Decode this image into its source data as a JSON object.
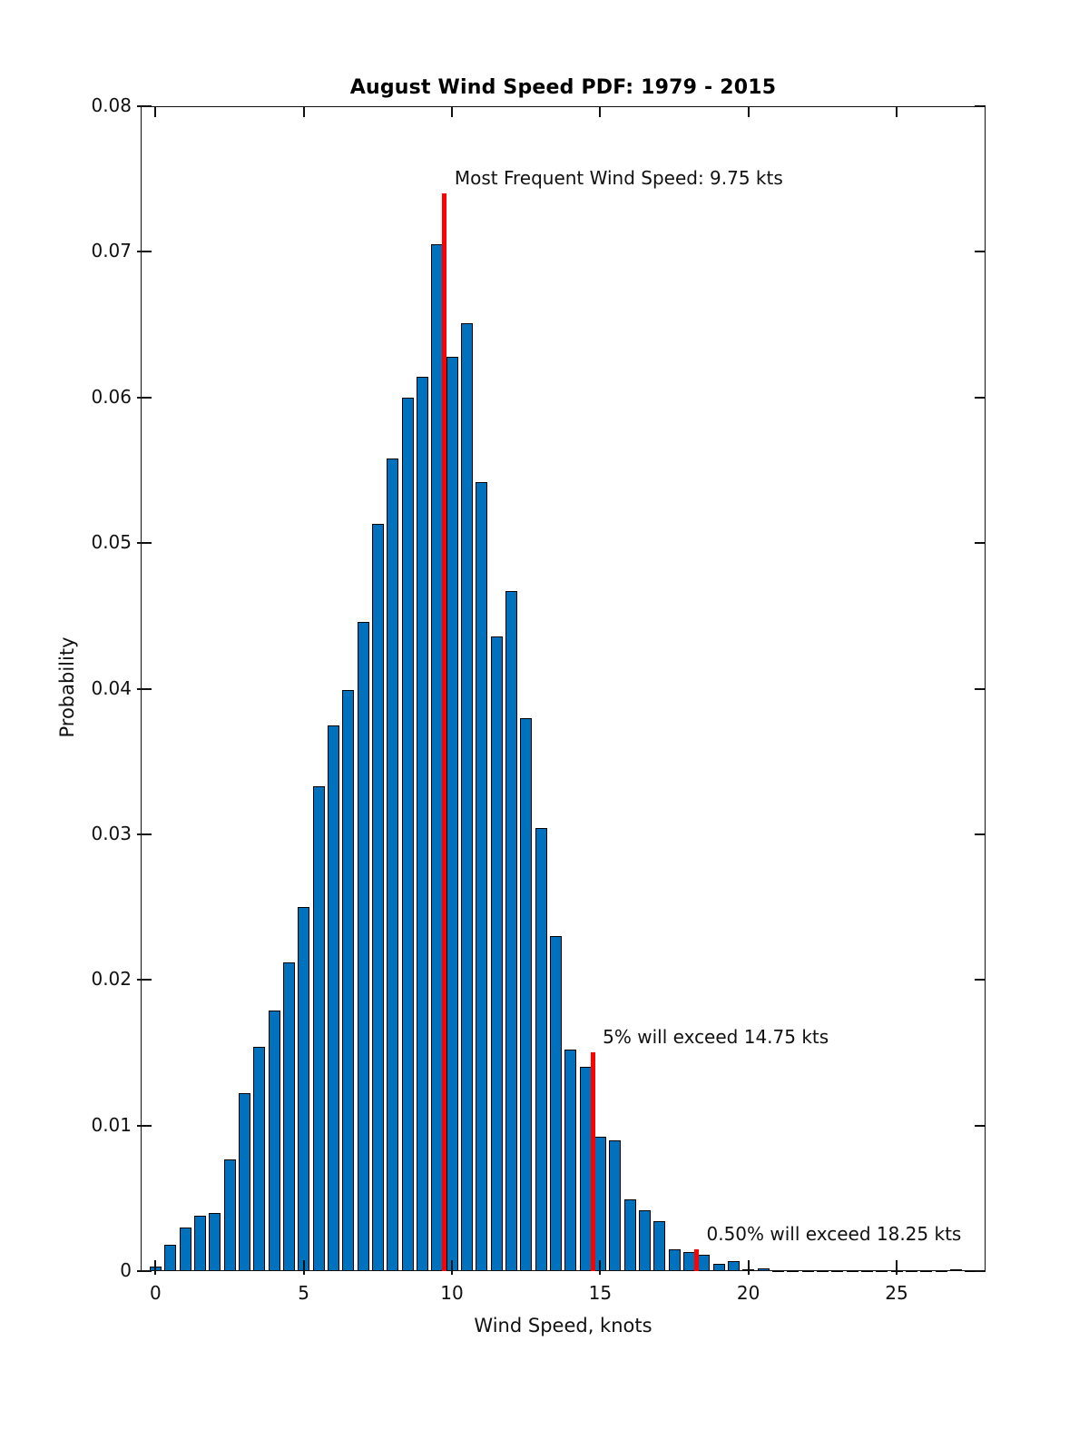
{
  "chart_data": {
    "type": "bar",
    "subtype": "histogram-pdf",
    "title": "August Wind Speed PDF: 1979 - 2015",
    "xlabel": "Wind Speed, knots",
    "ylabel": "Probability",
    "xlim": [
      -0.5,
      28
    ],
    "ylim": [
      0,
      0.08
    ],
    "xticks": [
      0,
      5,
      10,
      15,
      20,
      25
    ],
    "xtick_labels": [
      "0",
      "5",
      "10",
      "15",
      "20",
      "25"
    ],
    "yticks": [
      0,
      0.01,
      0.02,
      0.03,
      0.04,
      0.05,
      0.06,
      0.07,
      0.08
    ],
    "ytick_labels": [
      "0",
      "0.01",
      "0.02",
      "0.03",
      "0.04",
      "0.05",
      "0.06",
      "0.07",
      "0.08"
    ],
    "grid": false,
    "legend": "none",
    "bin_width_kts": 0.5,
    "bin_centers": [
      0,
      0.5,
      1,
      1.5,
      2,
      2.5,
      3,
      3.5,
      4,
      4.5,
      5,
      5.5,
      6,
      6.5,
      7,
      7.5,
      8,
      8.5,
      9,
      9.5,
      10,
      10.5,
      11,
      11.5,
      12,
      12.5,
      13,
      13.5,
      14,
      14.5,
      15,
      15.5,
      16,
      16.5,
      17,
      17.5,
      18,
      18.5,
      19,
      19.5,
      20,
      20.5,
      21,
      21.5,
      22,
      22.5,
      23,
      23.5,
      24,
      24.5,
      25,
      25.5,
      26,
      26.5,
      27,
      27.5
    ],
    "probabilities": [
      0.0003,
      0.0018,
      0.003,
      0.0038,
      0.004,
      0.0077,
      0.0122,
      0.0154,
      0.0179,
      0.0212,
      0.025,
      0.0333,
      0.0375,
      0.0399,
      0.0446,
      0.0513,
      0.0558,
      0.06,
      0.0614,
      0.0705,
      0.0628,
      0.0651,
      0.0542,
      0.0436,
      0.0467,
      0.038,
      0.0304,
      0.023,
      0.0152,
      0.014,
      0.0092,
      0.009,
      0.0049,
      0.0042,
      0.0034,
      0.0015,
      0.0013,
      0.0011,
      0.0005,
      0.0007,
      0.0001,
      0.0002,
      8e-05,
      8e-05,
      8e-05,
      8e-05,
      8e-05,
      8e-05,
      8e-05,
      5e-05,
      8e-05,
      8e-05,
      8e-05,
      8e-05,
      0.00015,
      8e-05
    ],
    "annotations": [
      {
        "text": "Most Frequent Wind Speed: 9.75 kts",
        "x_kts": 9.75,
        "line_top": 0.074
      },
      {
        "text": "5% will exceed 14.75 kts",
        "x_kts": 14.75,
        "line_top": 0.015
      },
      {
        "text": "0.50% will exceed 18.25 kts",
        "x_kts": 18.25,
        "line_top": 0.0015
      }
    ],
    "colors": {
      "bar_fill": "#0072BD",
      "bar_edge": "#000000",
      "threshold_line": "#FF0000",
      "axis": "#111111",
      "text": "#111111"
    }
  }
}
